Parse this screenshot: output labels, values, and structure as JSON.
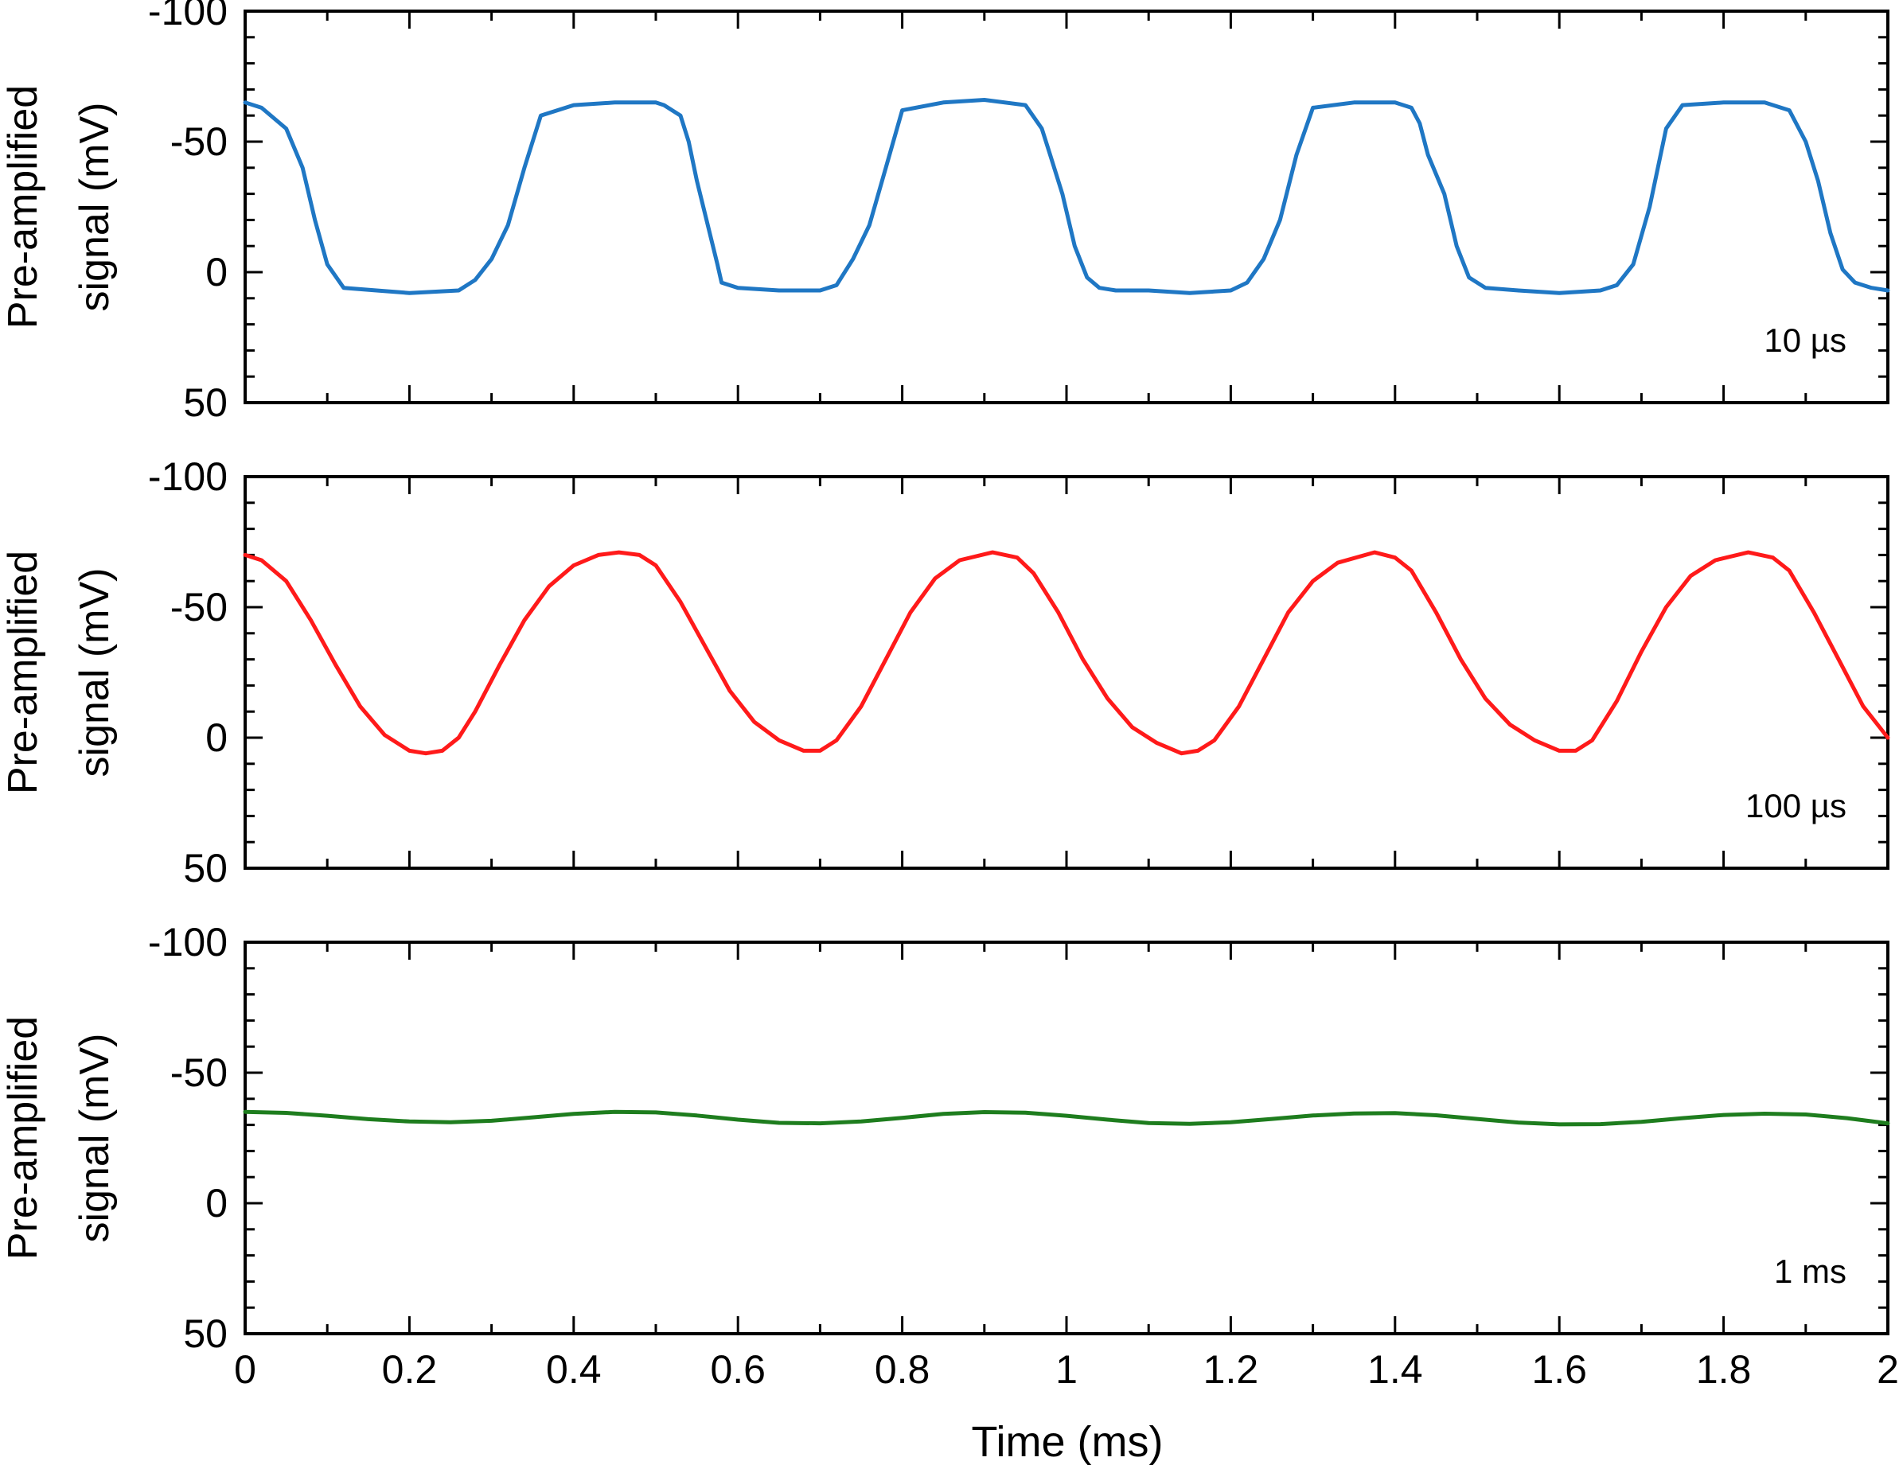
{
  "figure": {
    "xlabel": "Time (ms)"
  },
  "chart_data": [
    {
      "type": "line",
      "ylabel_line1": "Pre-amplified",
      "ylabel_line2": "signal (mV)",
      "annotation": "10 µs",
      "xlim": [
        0,
        2
      ],
      "ylim": [
        50,
        -100
      ],
      "y_inverted": true,
      "xticks": [
        0,
        0.2,
        0.4,
        0.6,
        0.8,
        1,
        1.2,
        1.4,
        1.6,
        1.8,
        2
      ],
      "xtick_labels": [],
      "yticks": [
        -100,
        -50,
        0,
        50
      ],
      "ytick_labels": [
        "-100",
        "-50",
        "0",
        "50"
      ],
      "series": [
        {
          "color": "#1f77c4",
          "x": [
            0,
            0.02,
            0.05,
            0.07,
            0.085,
            0.1,
            0.12,
            0.16,
            0.2,
            0.26,
            0.28,
            0.3,
            0.32,
            0.34,
            0.36,
            0.4,
            0.45,
            0.5,
            0.51,
            0.53,
            0.54,
            0.55,
            0.575,
            0.58,
            0.6,
            0.65,
            0.7,
            0.72,
            0.74,
            0.76,
            0.78,
            0.8,
            0.85,
            0.9,
            0.95,
            0.97,
            0.98,
            0.995,
            1.01,
            1.025,
            1.04,
            1.06,
            1.1,
            1.15,
            1.2,
            1.22,
            1.24,
            1.26,
            1.28,
            1.3,
            1.35,
            1.4,
            1.42,
            1.43,
            1.44,
            1.46,
            1.475,
            1.49,
            1.51,
            1.55,
            1.6,
            1.65,
            1.67,
            1.69,
            1.71,
            1.73,
            1.75,
            1.8,
            1.85,
            1.88,
            1.9,
            1.915,
            1.93,
            1.945,
            1.96,
            1.98,
            2.0
          ],
          "y": [
            -65,
            -63,
            -55,
            -40,
            -20,
            -3,
            6,
            7,
            8,
            7,
            3,
            -5,
            -18,
            -40,
            -60,
            -64,
            -65,
            -65,
            -64,
            -60,
            -50,
            -35,
            -3,
            4,
            6,
            7,
            7,
            5,
            -5,
            -18,
            -40,
            -62,
            -65,
            -66,
            -64,
            -55,
            -45,
            -30,
            -10,
            2,
            6,
            7,
            7,
            8,
            7,
            4,
            -5,
            -20,
            -45,
            -63,
            -65,
            -65,
            -63,
            -57,
            -45,
            -30,
            -10,
            2,
            6,
            7,
            8,
            7,
            5,
            -3,
            -25,
            -55,
            -64,
            -65,
            -65,
            -62,
            -50,
            -35,
            -15,
            -1,
            4,
            6,
            7
          ]
        }
      ]
    },
    {
      "type": "line",
      "ylabel_line1": "Pre-amplified",
      "ylabel_line2": "signal (mV)",
      "annotation": "100 µs",
      "xlim": [
        0,
        2
      ],
      "ylim": [
        50,
        -100
      ],
      "y_inverted": true,
      "xticks": [
        0,
        0.2,
        0.4,
        0.6,
        0.8,
        1,
        1.2,
        1.4,
        1.6,
        1.8,
        2
      ],
      "xtick_labels": [],
      "yticks": [
        -100,
        -50,
        0,
        50
      ],
      "ytick_labels": [
        "-100",
        "-50",
        "0",
        "50"
      ],
      "series": [
        {
          "color": "#ff1a1a",
          "x": [
            0,
            0.02,
            0.05,
            0.08,
            0.11,
            0.14,
            0.17,
            0.2,
            0.22,
            0.24,
            0.26,
            0.28,
            0.31,
            0.34,
            0.37,
            0.4,
            0.43,
            0.455,
            0.48,
            0.5,
            0.53,
            0.56,
            0.59,
            0.62,
            0.65,
            0.68,
            0.7,
            0.72,
            0.75,
            0.78,
            0.81,
            0.84,
            0.87,
            0.91,
            0.94,
            0.96,
            0.99,
            1.02,
            1.05,
            1.08,
            1.11,
            1.14,
            1.16,
            1.18,
            1.21,
            1.24,
            1.27,
            1.3,
            1.33,
            1.375,
            1.4,
            1.42,
            1.45,
            1.48,
            1.51,
            1.54,
            1.57,
            1.6,
            1.62,
            1.64,
            1.67,
            1.7,
            1.73,
            1.76,
            1.79,
            1.83,
            1.86,
            1.88,
            1.91,
            1.94,
            1.97,
            2.0
          ],
          "y": [
            -70,
            -68,
            -60,
            -45,
            -28,
            -12,
            -1,
            5,
            6,
            5,
            0,
            -10,
            -28,
            -45,
            -58,
            -66,
            -70,
            -71,
            -70,
            -66,
            -52,
            -35,
            -18,
            -6,
            1,
            5,
            5,
            1,
            -12,
            -30,
            -48,
            -61,
            -68,
            -71,
            -69,
            -63,
            -48,
            -30,
            -15,
            -4,
            2,
            6,
            5,
            1,
            -12,
            -30,
            -48,
            -60,
            -67,
            -71,
            -69,
            -64,
            -48,
            -30,
            -15,
            -5,
            1,
            5,
            5,
            1,
            -14,
            -33,
            -50,
            -62,
            -68,
            -71,
            -69,
            -64,
            -48,
            -30,
            -12,
            0
          ]
        }
      ]
    },
    {
      "type": "line",
      "ylabel_line1": "Pre-amplified",
      "ylabel_line2": "signal (mV)",
      "annotation": "1 ms",
      "xlim": [
        0,
        2
      ],
      "ylim": [
        50,
        -100
      ],
      "y_inverted": true,
      "xticks": [
        0,
        0.2,
        0.4,
        0.6,
        0.8,
        1,
        1.2,
        1.4,
        1.6,
        1.8,
        2
      ],
      "xtick_labels": [
        "0",
        "0.2",
        "0.4",
        "0.6",
        "0.8",
        "1",
        "1.2",
        "1.4",
        "1.6",
        "1.8",
        "2"
      ],
      "yticks": [
        -100,
        -50,
        0,
        50
      ],
      "ytick_labels": [
        "-100",
        "-50",
        "0",
        "50"
      ],
      "series": [
        {
          "color": "#1e7d1e",
          "x": [
            0,
            0.05,
            0.1,
            0.15,
            0.2,
            0.25,
            0.3,
            0.35,
            0.4,
            0.45,
            0.5,
            0.55,
            0.6,
            0.65,
            0.7,
            0.75,
            0.8,
            0.85,
            0.9,
            0.95,
            1.0,
            1.05,
            1.1,
            1.15,
            1.2,
            1.25,
            1.3,
            1.35,
            1.4,
            1.45,
            1.5,
            1.55,
            1.6,
            1.65,
            1.7,
            1.75,
            1.8,
            1.85,
            1.9,
            1.95,
            2.0
          ],
          "y": [
            -35,
            -34.6,
            -33.5,
            -32.2,
            -31.3,
            -31,
            -31.6,
            -32.9,
            -34.2,
            -35,
            -34.8,
            -33.6,
            -32,
            -30.8,
            -30.6,
            -31.3,
            -32.7,
            -34.2,
            -34.9,
            -34.7,
            -33.5,
            -32,
            -30.7,
            -30.4,
            -31,
            -32.3,
            -33.6,
            -34.4,
            -34.5,
            -33.7,
            -32.3,
            -30.9,
            -30.2,
            -30.3,
            -31.2,
            -32.6,
            -33.8,
            -34.3,
            -34,
            -32.6,
            -30.6
          ]
        }
      ]
    }
  ]
}
